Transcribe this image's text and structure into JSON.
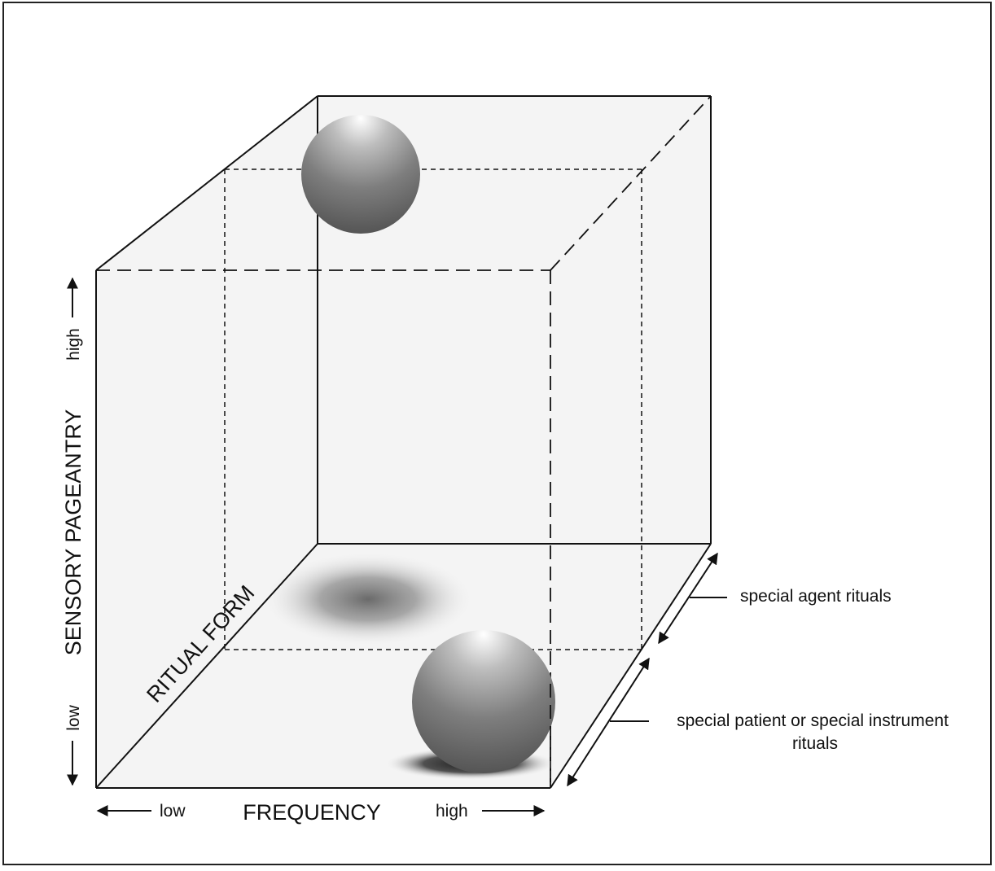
{
  "axes": {
    "frequency": {
      "label": "FREQUENCY",
      "low": "low",
      "high": "high"
    },
    "sensory_pageantry": {
      "label": "SENSORY PAGEANTRY",
      "low": "low",
      "high": "high"
    },
    "ritual_form": {
      "label": "RITUAL FORM"
    }
  },
  "annotations": {
    "special_agent": "special agent rituals",
    "special_patient_line1": "special patient or special instrument",
    "special_patient_line2": "rituals"
  },
  "colors": {
    "box_fill": "#f4f4f4",
    "line": "#111111",
    "sphere_light": "#ffffff",
    "sphere_dark": "#555555"
  }
}
